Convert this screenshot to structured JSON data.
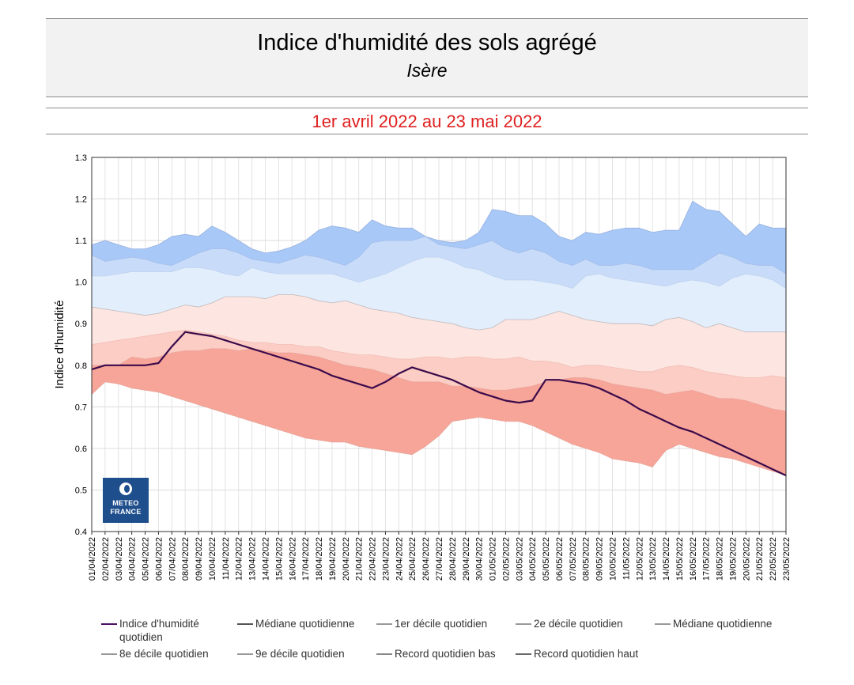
{
  "header": {
    "title": "Indice d'humidité des sols agrégé",
    "subtitle": "Isère",
    "period": "1er avril 2022 au 23 mai 2022"
  },
  "logo": {
    "line1": "METEO",
    "line2": "FRANCE"
  },
  "colors": {
    "index_line": "#3a0a4a",
    "band_9e_record_haut": "#a8c8f8",
    "band_8e_9e": "#c8dcfa",
    "band_med_8e": "#e2eefc",
    "band_2e_med": "#fde6e1",
    "band_1er_2e": "#fbcdc4",
    "band_record_bas_1er": "#f7a599",
    "legend_index": "#4b1060",
    "legend_other": "#777777"
  },
  "legend": [
    {
      "label": "Indice d'humidité quotidien",
      "color": "#4b1060"
    },
    {
      "label": "Médiane quotidienne",
      "color": "#555555"
    },
    {
      "label": "1er décile quotidien",
      "color": "#999999"
    },
    {
      "label": "2e décile quotidien",
      "color": "#999999"
    },
    {
      "label": "Médiane quotidienne",
      "color": "#999999"
    },
    {
      "label": "8e décile quotidien",
      "color": "#999999"
    },
    {
      "label": "9e décile quotidien",
      "color": "#999999"
    },
    {
      "label": "Record quotidien bas",
      "color": "#888888"
    },
    {
      "label": "Record quotidien haut",
      "color": "#666666"
    }
  ],
  "chart_data": {
    "type": "area",
    "title": "Indice d'humidité des sols agrégé",
    "ylabel": "Indice d'humidité",
    "xlabel": "",
    "ylim": [
      0.4,
      1.3
    ],
    "yticks": [
      "0.4",
      "0.5",
      "0.6",
      "0.7",
      "0.8",
      "0.9",
      "1.0",
      "1.1",
      "1.2",
      "1.3"
    ],
    "grid": true,
    "categories": [
      "01/04/2022",
      "02/04/2022",
      "03/04/2022",
      "04/04/2022",
      "05/04/2022",
      "06/04/2022",
      "07/04/2022",
      "08/04/2022",
      "09/04/2022",
      "10/04/2022",
      "11/04/2022",
      "12/04/2022",
      "13/04/2022",
      "14/04/2022",
      "15/04/2022",
      "16/04/2022",
      "17/04/2022",
      "18/04/2022",
      "19/04/2022",
      "20/04/2022",
      "21/04/2022",
      "22/04/2022",
      "23/04/2022",
      "24/04/2022",
      "25/04/2022",
      "26/04/2022",
      "27/04/2022",
      "28/04/2022",
      "29/04/2022",
      "30/04/2022",
      "01/05/2022",
      "02/05/2022",
      "03/05/2022",
      "04/05/2022",
      "05/05/2022",
      "06/05/2022",
      "07/05/2022",
      "08/05/2022",
      "09/05/2022",
      "10/05/2022",
      "11/05/2022",
      "12/05/2022",
      "13/05/2022",
      "14/05/2022",
      "15/05/2022",
      "16/05/2022",
      "17/05/2022",
      "18/05/2022",
      "19/05/2022",
      "20/05/2022",
      "21/05/2022",
      "22/05/2022",
      "23/05/2022"
    ],
    "series": [
      {
        "name": "Record quotidien haut",
        "values": [
          1.09,
          1.1,
          1.09,
          1.08,
          1.08,
          1.09,
          1.11,
          1.115,
          1.11,
          1.135,
          1.12,
          1.1,
          1.08,
          1.07,
          1.075,
          1.085,
          1.1,
          1.125,
          1.135,
          1.13,
          1.12,
          1.15,
          1.135,
          1.13,
          1.13,
          1.11,
          1.1,
          1.095,
          1.1,
          1.12,
          1.175,
          1.17,
          1.16,
          1.16,
          1.14,
          1.11,
          1.1,
          1.12,
          1.115,
          1.125,
          1.13,
          1.13,
          1.12,
          1.125,
          1.125,
          1.195,
          1.175,
          1.17,
          1.14,
          1.11,
          1.14,
          1.13,
          1.13
        ]
      },
      {
        "name": "9e décile quotidien",
        "values": [
          1.065,
          1.05,
          1.055,
          1.06,
          1.055,
          1.045,
          1.04,
          1.055,
          1.07,
          1.08,
          1.08,
          1.07,
          1.055,
          1.05,
          1.045,
          1.055,
          1.065,
          1.06,
          1.05,
          1.04,
          1.06,
          1.095,
          1.1,
          1.1,
          1.1,
          1.11,
          1.09,
          1.085,
          1.08,
          1.09,
          1.1,
          1.08,
          1.07,
          1.08,
          1.07,
          1.05,
          1.04,
          1.055,
          1.04,
          1.04,
          1.045,
          1.04,
          1.03,
          1.03,
          1.03,
          1.03,
          1.05,
          1.07,
          1.06,
          1.045,
          1.04,
          1.04,
          1.02
        ]
      },
      {
        "name": "8e décile quotidien",
        "values": [
          1.015,
          1.015,
          1.02,
          1.025,
          1.025,
          1.025,
          1.025,
          1.035,
          1.035,
          1.03,
          1.02,
          1.015,
          1.035,
          1.025,
          1.02,
          1.02,
          1.02,
          1.02,
          1.02,
          1.01,
          1.0,
          1.01,
          1.02,
          1.035,
          1.05,
          1.06,
          1.06,
          1.05,
          1.035,
          1.03,
          1.015,
          1.005,
          1.005,
          1.005,
          1.0,
          0.995,
          0.985,
          1.015,
          1.02,
          1.01,
          1.005,
          1.0,
          0.995,
          0.99,
          1.0,
          1.005,
          1.0,
          0.99,
          1.01,
          1.02,
          1.015,
          1.005,
          0.985
        ]
      },
      {
        "name": "Médiane quotidienne",
        "values": [
          0.94,
          0.935,
          0.93,
          0.925,
          0.92,
          0.925,
          0.935,
          0.945,
          0.94,
          0.95,
          0.965,
          0.965,
          0.965,
          0.96,
          0.97,
          0.97,
          0.965,
          0.955,
          0.95,
          0.955,
          0.945,
          0.935,
          0.93,
          0.925,
          0.915,
          0.91,
          0.905,
          0.9,
          0.89,
          0.885,
          0.89,
          0.91,
          0.91,
          0.91,
          0.92,
          0.93,
          0.92,
          0.91,
          0.905,
          0.9,
          0.9,
          0.9,
          0.895,
          0.91,
          0.915,
          0.905,
          0.89,
          0.9,
          0.89,
          0.88,
          0.88,
          0.88,
          0.88
        ]
      },
      {
        "name": "2e décile quotidien",
        "values": [
          0.85,
          0.855,
          0.86,
          0.865,
          0.87,
          0.875,
          0.88,
          0.885,
          0.88,
          0.875,
          0.87,
          0.86,
          0.855,
          0.855,
          0.85,
          0.85,
          0.845,
          0.845,
          0.835,
          0.83,
          0.825,
          0.825,
          0.82,
          0.815,
          0.815,
          0.82,
          0.82,
          0.815,
          0.82,
          0.82,
          0.815,
          0.815,
          0.82,
          0.81,
          0.81,
          0.805,
          0.795,
          0.8,
          0.8,
          0.795,
          0.79,
          0.785,
          0.785,
          0.795,
          0.8,
          0.795,
          0.785,
          0.78,
          0.775,
          0.77,
          0.77,
          0.775,
          0.77
        ]
      },
      {
        "name": "1er décile quotidien",
        "values": [
          0.8,
          0.8,
          0.8,
          0.82,
          0.815,
          0.82,
          0.83,
          0.835,
          0.835,
          0.84,
          0.84,
          0.835,
          0.84,
          0.835,
          0.83,
          0.83,
          0.825,
          0.82,
          0.81,
          0.8,
          0.795,
          0.79,
          0.78,
          0.77,
          0.76,
          0.76,
          0.76,
          0.75,
          0.75,
          0.745,
          0.74,
          0.74,
          0.745,
          0.75,
          0.76,
          0.765,
          0.77,
          0.77,
          0.765,
          0.755,
          0.75,
          0.745,
          0.74,
          0.73,
          0.735,
          0.74,
          0.73,
          0.72,
          0.72,
          0.715,
          0.705,
          0.695,
          0.69
        ]
      },
      {
        "name": "Record quotidien bas",
        "values": [
          0.73,
          0.76,
          0.755,
          0.745,
          0.74,
          0.735,
          0.725,
          0.715,
          0.705,
          0.695,
          0.685,
          0.675,
          0.665,
          0.655,
          0.645,
          0.635,
          0.625,
          0.62,
          0.615,
          0.615,
          0.605,
          0.6,
          0.595,
          0.59,
          0.585,
          0.605,
          0.63,
          0.665,
          0.67,
          0.675,
          0.67,
          0.665,
          0.665,
          0.655,
          0.64,
          0.625,
          0.61,
          0.6,
          0.59,
          0.575,
          0.57,
          0.565,
          0.555,
          0.595,
          0.61,
          0.6,
          0.59,
          0.58,
          0.575,
          0.565,
          0.555,
          0.545,
          0.535
        ]
      },
      {
        "name": "Indice d'humidité quotidien",
        "values": [
          0.79,
          0.8,
          0.8,
          0.8,
          0.8,
          0.805,
          0.845,
          0.88,
          0.875,
          0.87,
          0.86,
          0.85,
          0.84,
          0.83,
          0.82,
          0.81,
          0.8,
          0.79,
          0.775,
          0.765,
          0.755,
          0.745,
          0.76,
          0.78,
          0.795,
          0.785,
          0.775,
          0.765,
          0.75,
          0.735,
          0.725,
          0.715,
          0.71,
          0.715,
          0.765,
          0.765,
          0.76,
          0.755,
          0.745,
          0.73,
          0.715,
          0.695,
          0.68,
          0.665,
          0.65,
          0.64,
          0.625,
          0.61,
          0.595,
          0.58,
          0.565,
          0.55,
          0.535
        ]
      }
    ]
  }
}
